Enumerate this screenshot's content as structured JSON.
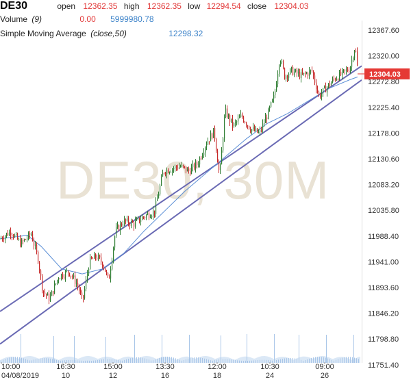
{
  "header": {
    "symbol": "DE30",
    "open_label": "open",
    "open_value": "12362.35",
    "high_label": "high",
    "high_value": "12362.35",
    "low_label": "low",
    "low_value": "12294.54",
    "close_label": "close",
    "close_value": "12304.03",
    "volume_label": "Volume",
    "volume_param": "(9)",
    "volume_value": "0.00",
    "volume_ma_value": "5999980.78",
    "sma_label": "Simple Moving Average",
    "sma_param": "(close,50)",
    "sma_value": "12298.32"
  },
  "watermark": "DE30, 30M",
  "price_tag": "12304.03",
  "colors": {
    "up": "#2e7d32",
    "down": "#c62828",
    "sma": "#5b8fd6",
    "channel": "#6a6ab4",
    "price_tag": "#e53935",
    "volume": "#a9c6e8"
  },
  "chart_data": {
    "type": "candlestick",
    "ylim": [
      11727.5,
      12391.4
    ],
    "yticks": [
      "12367.60",
      "12320.00",
      "12272.80",
      "12225.40",
      "12178.00",
      "12130.60",
      "12083.20",
      "12035.80",
      "11988.40",
      "11941.00",
      "11893.60",
      "11846.20",
      "11798.80",
      "11751.40"
    ],
    "xticks": [
      {
        "time": "10:00",
        "date": "04/08/2019"
      },
      {
        "time": "16:30",
        "date": "10"
      },
      {
        "time": "15:00",
        "date": "12"
      },
      {
        "time": "13:30",
        "date": "16"
      },
      {
        "time": "12:00",
        "date": "18"
      },
      {
        "time": "10:30",
        "date": "24"
      },
      {
        "time": "09:00",
        "date": "26"
      }
    ],
    "last_close": 12304.03,
    "sma_value": 12298.32,
    "price_path": [
      [
        0,
        11975
      ],
      [
        15,
        11990
      ],
      [
        30,
        11965
      ],
      [
        45,
        11985
      ],
      [
        55,
        11935
      ],
      [
        62,
        11870
      ],
      [
        72,
        11855
      ],
      [
        85,
        11900
      ],
      [
        100,
        11910
      ],
      [
        112,
        11885
      ],
      [
        120,
        11850
      ],
      [
        130,
        11930
      ],
      [
        140,
        11940
      ],
      [
        150,
        11925
      ],
      [
        158,
        11890
      ],
      [
        168,
        11990
      ],
      [
        180,
        12010
      ],
      [
        195,
        12005
      ],
      [
        210,
        12020
      ],
      [
        225,
        12030
      ],
      [
        238,
        12110
      ],
      [
        250,
        12115
      ],
      [
        262,
        12120
      ],
      [
        275,
        12110
      ],
      [
        288,
        12125
      ],
      [
        300,
        12165
      ],
      [
        312,
        12190
      ],
      [
        320,
        12100
      ],
      [
        328,
        12230
      ],
      [
        340,
        12200
      ],
      [
        352,
        12220
      ],
      [
        365,
        12195
      ],
      [
        378,
        12185
      ],
      [
        392,
        12230
      ],
      [
        400,
        12260
      ],
      [
        408,
        12340
      ],
      [
        415,
        12300
      ],
      [
        425,
        12310
      ],
      [
        440,
        12300
      ],
      [
        455,
        12310
      ],
      [
        465,
        12260
      ],
      [
        475,
        12275
      ],
      [
        488,
        12295
      ],
      [
        500,
        12305
      ],
      [
        510,
        12315
      ],
      [
        518,
        12360
      ],
      [
        522,
        12304
      ]
    ],
    "sma_path": [
      [
        0,
        11975
      ],
      [
        40,
        11982
      ],
      [
        60,
        11960
      ],
      [
        90,
        11915
      ],
      [
        120,
        11905
      ],
      [
        150,
        11915
      ],
      [
        180,
        11945
      ],
      [
        210,
        11990
      ],
      [
        240,
        12030
      ],
      [
        270,
        12070
      ],
      [
        300,
        12105
      ],
      [
        330,
        12140
      ],
      [
        360,
        12175
      ],
      [
        390,
        12205
      ],
      [
        420,
        12225
      ],
      [
        450,
        12250
      ],
      [
        480,
        12275
      ],
      [
        510,
        12292
      ],
      [
        522,
        12298
      ]
    ],
    "channel_lines": [
      {
        "name": "upper",
        "from": [
          0,
          11830
        ],
        "to": [
          528,
          12320
        ]
      },
      {
        "name": "lower",
        "from": [
          0,
          11765
        ],
        "to": [
          528,
          12292
        ]
      }
    ]
  }
}
